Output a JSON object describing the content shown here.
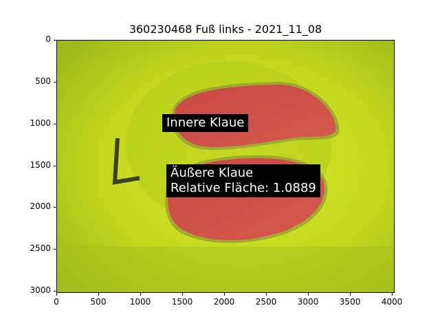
{
  "title": "360230468 Fuß links - 2021_11_08",
  "image": {
    "background_color": "#c8de1a",
    "segment_color": "#d0504a",
    "claws": [
      {
        "name": "innere-klaue"
      },
      {
        "name": "aeussere-klaue"
      }
    ]
  },
  "annotations": {
    "inner_label": "Innere Klaue",
    "outer_label": "Äußere Klaue",
    "relative_area_label": "Relative Fläche: 1.0889"
  },
  "axes": {
    "x_ticks": [
      "0",
      "500",
      "1000",
      "1500",
      "2000",
      "2500",
      "3000",
      "3500",
      "4000"
    ],
    "y_ticks": [
      "0",
      "500",
      "1000",
      "1500",
      "2000",
      "2500",
      "3000"
    ],
    "x_range": [
      0,
      4032
    ],
    "y_range": [
      3024,
      0
    ]
  }
}
